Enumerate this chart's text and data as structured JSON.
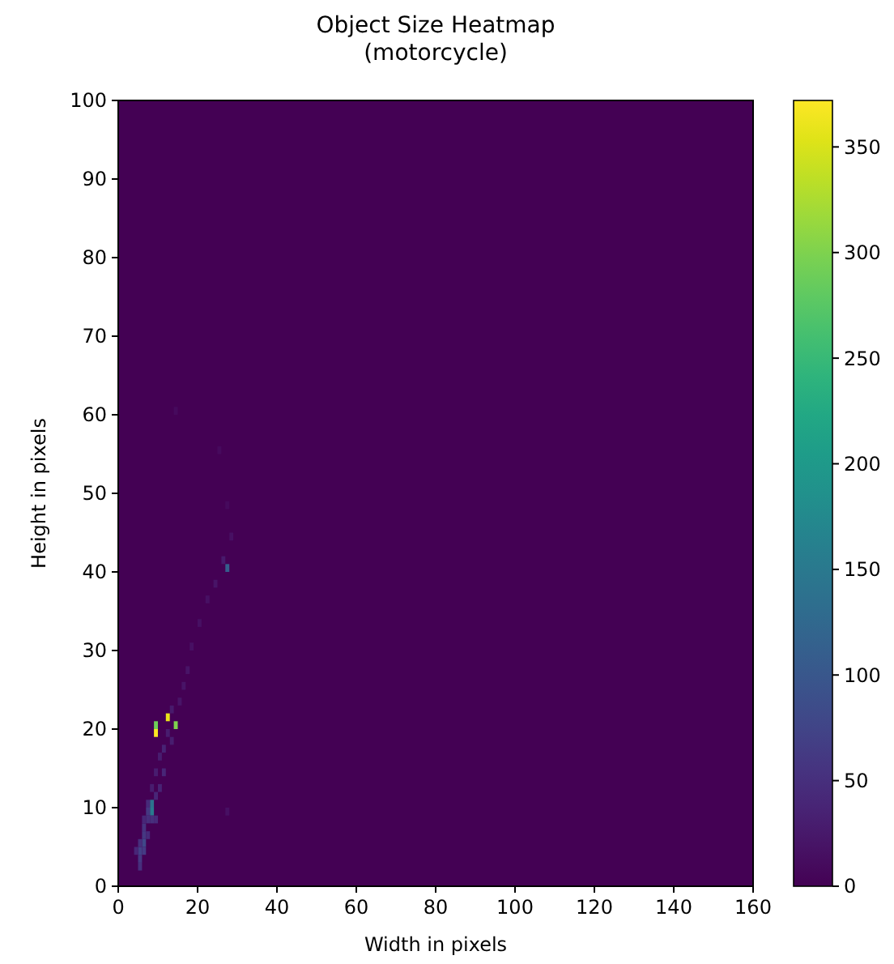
{
  "chart_data": {
    "type": "scatter",
    "title": "Object Size Heatmap\n(motorcycle)",
    "xlabel": "Width in pixels",
    "ylabel": "Height in pixels",
    "marker": "square",
    "xlim": [
      0,
      160
    ],
    "xticks": [
      0,
      20,
      40,
      60,
      80,
      100,
      120,
      140,
      160
    ],
    "ylim": [
      0,
      100
    ],
    "yticks": [
      0,
      10,
      20,
      30,
      40,
      50,
      60,
      70,
      80,
      90,
      100
    ],
    "clim": [
      0,
      372
    ],
    "cticks": [
      0,
      50,
      100,
      150,
      200,
      250,
      300,
      350
    ],
    "series": [
      {
        "x": [
          9.5,
          9.5,
          12.5,
          14.5,
          8.5,
          8.5,
          27.5,
          5.5,
          5.5,
          6.5,
          5.5,
          6.5,
          6.5,
          7.5,
          4.5,
          7.5,
          7.5,
          9.5,
          8.5,
          6.5,
          7.5,
          9.5,
          10.5,
          11.5,
          8.5,
          9.5,
          10.5,
          11.5,
          13.5,
          12.5,
          13.5,
          15.5,
          16.5,
          17.5,
          18.5,
          20.5,
          22.5,
          24.5,
          26.5,
          28.5,
          27.5,
          25.5,
          14.5,
          27.5,
          5.5,
          6.5
        ],
        "values": [
          19.5,
          20.5,
          21.5,
          20.5,
          9.5,
          10.5,
          40.5,
          3.5,
          4.5,
          5.5,
          5.5,
          6.5,
          7.5,
          8.5,
          4.5,
          6.5,
          9.5,
          8.5,
          8.5,
          8.5,
          10.5,
          11.5,
          12.5,
          14.5,
          12.5,
          14.5,
          16.5,
          17.5,
          18.5,
          19.5,
          22.5,
          23.5,
          25.5,
          27.5,
          30.5,
          33.5,
          36.5,
          38.5,
          41.5,
          44.5,
          48.5,
          55.5,
          60.5,
          9.5,
          2.5,
          4.5
        ],
        "cvalues": [
          370,
          290,
          360,
          300,
          150,
          140,
          110,
          60,
          70,
          80,
          50,
          60,
          55,
          50,
          40,
          45,
          60,
          45,
          50,
          40,
          45,
          40,
          35,
          40,
          30,
          30,
          30,
          35,
          30,
          30,
          25,
          20,
          20,
          20,
          15,
          15,
          15,
          20,
          25,
          15,
          10,
          10,
          10,
          15,
          50,
          65
        ]
      }
    ]
  }
}
